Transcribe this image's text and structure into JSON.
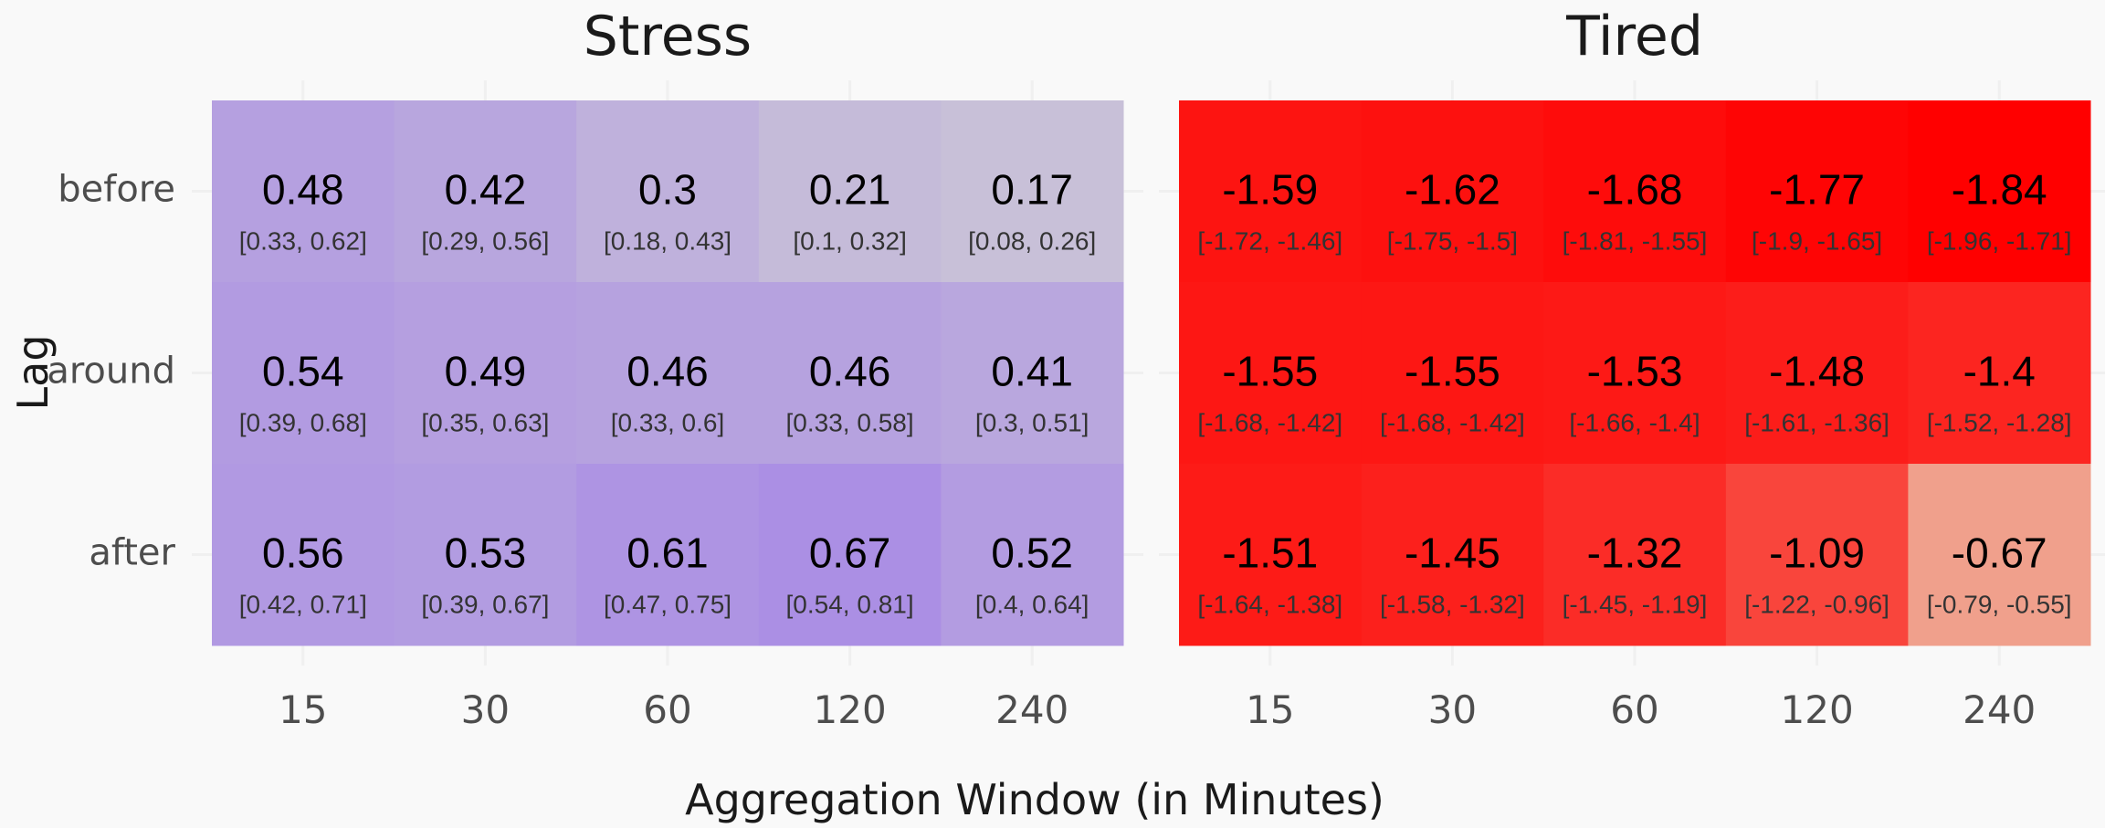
{
  "x_axis_label": "Aggregation Window (in Minutes)",
  "y_axis_label": "Lag",
  "chart_data": [
    {
      "type": "heatmap",
      "title": "Stress",
      "x": [
        "15",
        "30",
        "60",
        "120",
        "240"
      ],
      "y": [
        "before",
        "around",
        "after"
      ],
      "color": "#ab8fe4",
      "values": [
        [
          0.48,
          0.42,
          0.3,
          0.21,
          0.17
        ],
        [
          0.54,
          0.49,
          0.46,
          0.46,
          0.41
        ],
        [
          0.56,
          0.53,
          0.61,
          0.67,
          0.52
        ]
      ],
      "intervals": [
        [
          "[0.33, 0.62]",
          "[0.29, 0.56]",
          "[0.18, 0.43]",
          "[0.1, 0.32]",
          "[0.08, 0.26]"
        ],
        [
          "[0.39, 0.68]",
          "[0.35, 0.63]",
          "[0.33, 0.6]",
          "[0.33, 0.58]",
          "[0.3, 0.51]"
        ],
        [
          "[0.42, 0.71]",
          "[0.39, 0.67]",
          "[0.47, 0.75]",
          "[0.54, 0.81]",
          "[0.4, 0.64]"
        ]
      ]
    },
    {
      "type": "heatmap",
      "title": "Tired",
      "x": [
        "15",
        "30",
        "60",
        "120",
        "240"
      ],
      "y": [
        "before",
        "around",
        "after"
      ],
      "color": "#ff0000",
      "values": [
        [
          -1.59,
          -1.62,
          -1.68,
          -1.77,
          -1.84
        ],
        [
          -1.55,
          -1.55,
          -1.53,
          -1.48,
          -1.4
        ],
        [
          -1.51,
          -1.45,
          -1.32,
          -1.09,
          -0.67
        ]
      ],
      "intervals": [
        [
          "[-1.72, -1.46]",
          "[-1.75, -1.5]",
          "[-1.81, -1.55]",
          "[-1.9, -1.65]",
          "[-1.96, -1.71]"
        ],
        [
          "[-1.68, -1.42]",
          "[-1.68, -1.42]",
          "[-1.66, -1.4]",
          "[-1.61, -1.36]",
          "[-1.52, -1.28]"
        ],
        [
          "[-1.64, -1.38]",
          "[-1.58, -1.32]",
          "[-1.45, -1.19]",
          "[-1.22, -0.96]",
          "[-0.79, -0.55]"
        ]
      ]
    }
  ]
}
